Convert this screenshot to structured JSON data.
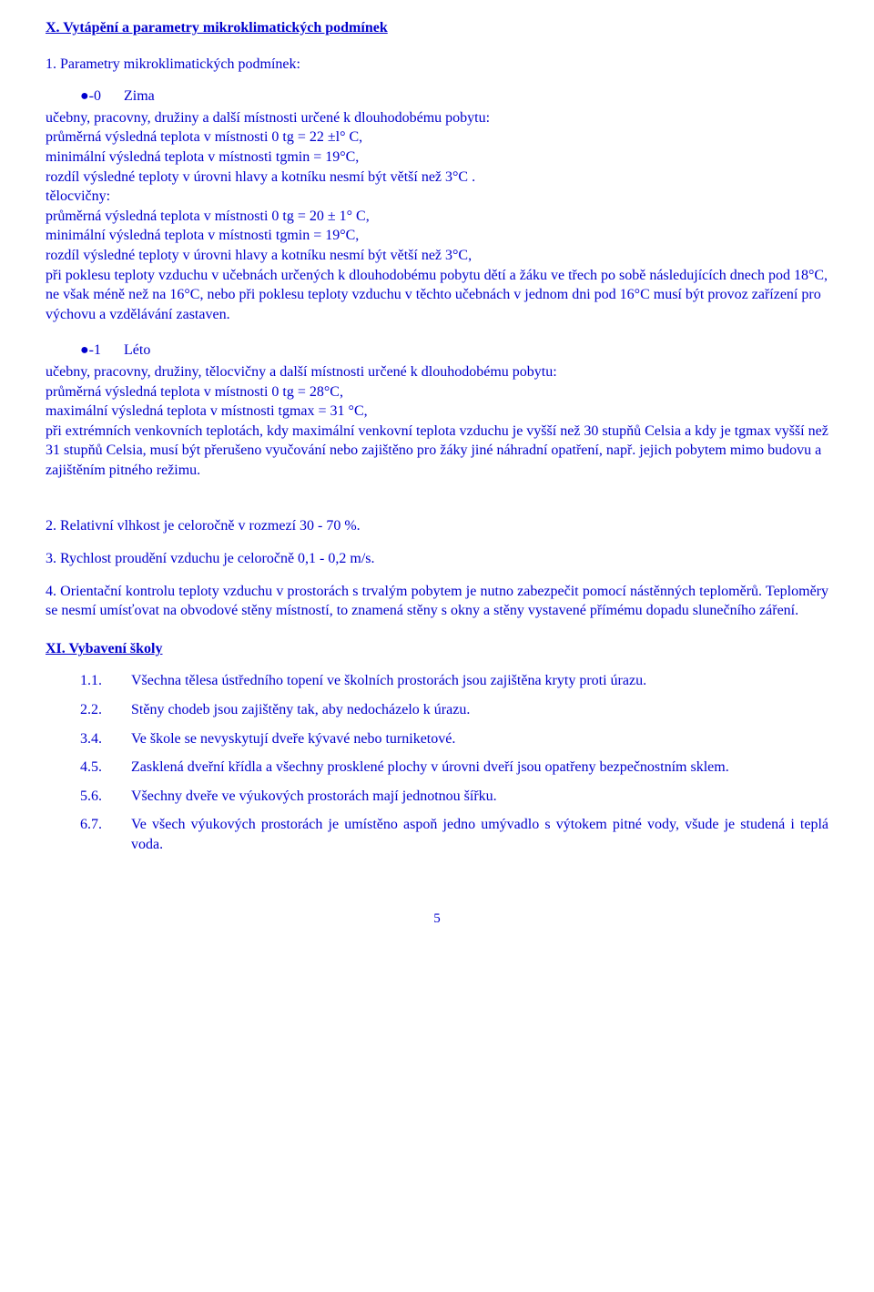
{
  "sectionX": {
    "heading": "X. Vytápění a parametry mikroklimatických podmínek",
    "intro": "1. Parametry mikroklimatických podmínek:",
    "zima": {
      "bullet_num": "●-0",
      "bullet_label": "Zima",
      "body": "učebny, pracovny, družiny a další místnosti určené k dlouhodobému pobytu:\nprůměrná výsledná teplota v místnosti 0 tg = 22 ±l° C,\nminimální výsledná teplota v místnosti tgmin = 19°C,\nrozdíl výsledné teploty v úrovni hlavy a kotníku nesmí být větší než 3°C .\ntělocvičny:\nprůměrná výsledná teplota v místnosti 0 tg = 20 ± 1° C,\nminimální výsledná teplota v místnosti tgmin = 19°C,\nrozdíl výsledné teploty v úrovni hlavy a kotníku nesmí být větší než 3°C,\npři poklesu teploty vzduchu v učebnách určených k dlouhodobému pobytu dětí a žáku ve třech po sobě následujících dnech pod 18°C, ne však méně než na 16°C, nebo při poklesu teploty vzduchu v těchto učebnách v jednom dni pod 16°C musí být provoz zařízení pro výchovu a vzdělávání zastaven."
    },
    "leto": {
      "bullet_num": "●-1",
      "bullet_label": "Léto",
      "body": "učebny, pracovny, družiny, tělocvičny a další místnosti určené k dlouhodobému pobytu:\nprůměrná výsledná teplota v místnosti 0 tg = 28°C,\nmaximální výsledná teplota v místnosti tgmax = 31 °C,\npři extrémních venkovních teplotách, kdy maximální venkovní teplota vzduchu je vyšší než 30 stupňů Celsia a kdy je tgmax vyšší než 31 stupňů Celsia, musí být přerušeno vyučování nebo zajištěno pro žáky jiné náhradní opatření, např. jejich pobytem mimo budovu a zajištěním pitného režimu."
    },
    "p2": "2. Relativní vlhkost je celoročně v rozmezí 30 - 70 %.",
    "p3": "3. Rychlost proudění vzduchu je celoročně 0,1 - 0,2 m/s.",
    "p4": "4. Orientační kontrolu teploty vzduchu v prostorách s trvalým pobytem je nutno zabezpečit pomocí nástěnných teploměrů. Teploměry se nesmí umísťovat na obvodové stěny místností, to znamená stěny s okny a stěny vystavené přímému dopadu slunečního záření."
  },
  "sectionXI": {
    "heading": "XI. Vybavení školy",
    "items": [
      {
        "num": "1.1.",
        "text": "Všechna tělesa ústředního topení ve školních prostorách jsou zajištěna kryty proti úrazu."
      },
      {
        "num": "2.2.",
        "text": "Stěny chodeb jsou zajištěny tak, aby nedocházelo k úrazu."
      },
      {
        "num": "3.4.",
        "text": "Ve škole se nevyskytují dveře kývavé nebo turniketové."
      },
      {
        "num": "4.5.",
        "text": "Zasklená dveřní křídla a všechny prosklené plochy v úrovni dveří jsou opatřeny bezpečnostním sklem."
      },
      {
        "num": "5.6.",
        "text": "Všechny dveře ve výukových prostorách mají jednotnou šířku."
      },
      {
        "num": "6.7.",
        "text": "Ve všech výukových prostorách je umístěno aspoň jedno umývadlo s výtokem pitné vody, všude je studená i teplá voda."
      }
    ]
  },
  "pageNumber": "5"
}
